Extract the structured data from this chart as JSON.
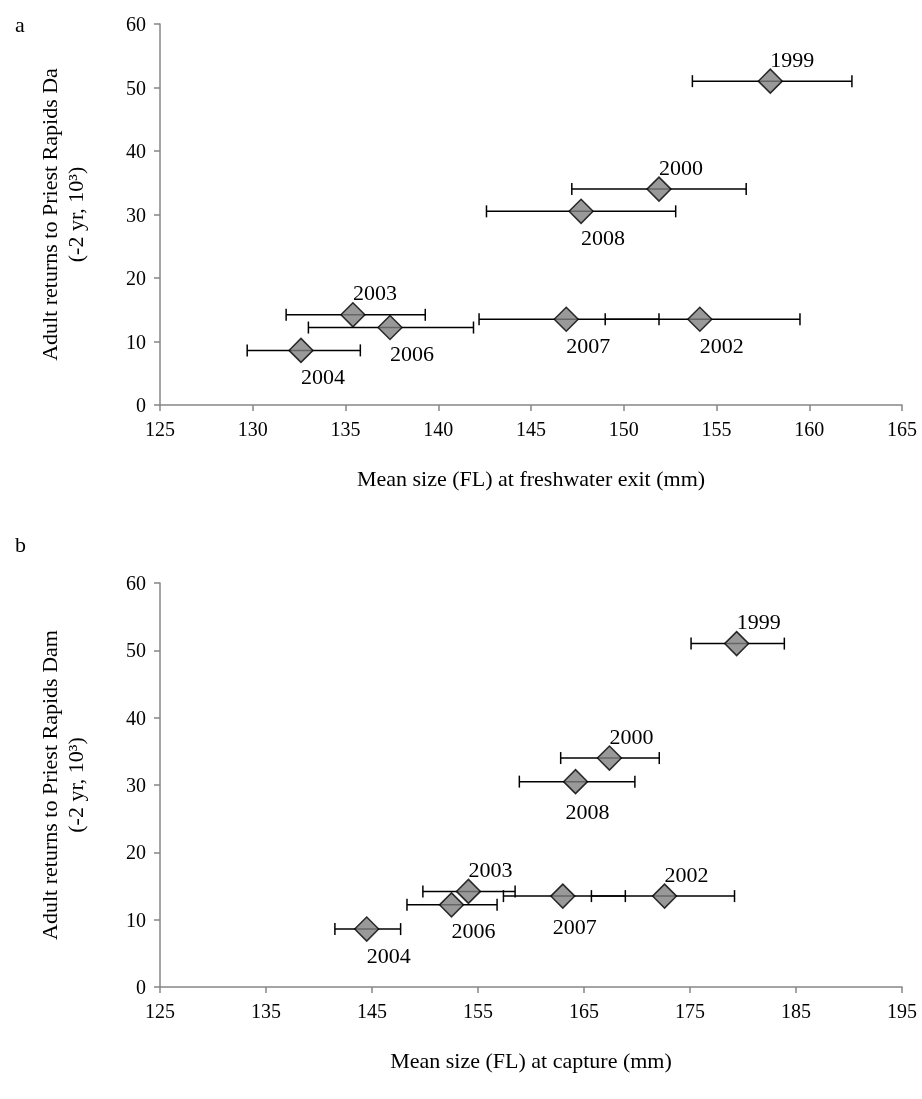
{
  "chart_data": [
    {
      "type": "scatter",
      "title": "a",
      "xlabel": "Mean size (FL) at freshwater exit (mm)",
      "ylabel": "Adult returns to Priest Rapids Da\n(-2 yr, 10³)",
      "x": [
        157.9,
        151.9,
        147.7,
        135.4,
        137.4,
        132.6,
        146.9,
        154.1
      ],
      "values": [
        51.0,
        34.0,
        30.5,
        14.2,
        12.2,
        8.6,
        13.5,
        13.5
      ],
      "xerrors": [
        [
          153.7,
          162.3
        ],
        [
          147.2,
          156.6
        ],
        [
          142.6,
          152.8
        ],
        [
          131.8,
          139.3
        ],
        [
          133.0,
          141.9
        ],
        [
          129.7,
          135.8
        ],
        [
          142.2,
          151.9
        ],
        [
          149.0,
          159.5
        ]
      ],
      "color": "#808080",
      "marker": "diamond",
      "xlim": [
        125,
        165
      ],
      "xticks": [
        125,
        130,
        135,
        140,
        145,
        150,
        155,
        160,
        165
      ],
      "ylim": [
        0,
        60
      ],
      "yticks": [
        0,
        10,
        20,
        30,
        40,
        50,
        60
      ],
      "grid": false,
      "annotations": [
        {
          "text": "1999",
          "x": 157.9,
          "y": 51.0
        },
        {
          "text": "2000",
          "x": 151.9,
          "y": 34.0
        },
        {
          "text": "2008",
          "x": 147.7,
          "y": 30.5
        },
        {
          "text": "2003",
          "x": 135.4,
          "y": 14.2
        },
        {
          "text": "2006",
          "x": 137.4,
          "y": 12.2
        },
        {
          "text": "2004",
          "x": 132.6,
          "y": 8.6
        },
        {
          "text": "2007",
          "x": 146.9,
          "y": 13.5
        },
        {
          "text": "2002",
          "x": 154.1,
          "y": 13.5
        }
      ]
    },
    {
      "type": "scatter",
      "title": "b",
      "xlabel": "Mean size (FL) at capture (mm)",
      "ylabel": "Adult returns to Priest Rapids Dam\n(-2 yr, 10³)",
      "x": [
        179.4,
        167.4,
        164.2,
        154.1,
        152.5,
        144.5,
        163.0,
        172.6
      ],
      "values": [
        51.0,
        34.0,
        30.5,
        14.2,
        12.2,
        8.6,
        13.5,
        13.5
      ],
      "xerrors": [
        [
          175.1,
          183.9
        ],
        [
          162.8,
          172.1
        ],
        [
          158.9,
          169.8
        ],
        [
          149.8,
          158.5
        ],
        [
          148.3,
          156.8
        ],
        [
          141.5,
          147.7
        ],
        [
          157.4,
          168.9
        ],
        [
          165.7,
          179.2
        ]
      ],
      "color": "#808080",
      "marker": "diamond",
      "xlim": [
        125,
        195
      ],
      "xticks": [
        125,
        135,
        145,
        155,
        165,
        175,
        185,
        195
      ],
      "ylim": [
        0,
        60
      ],
      "yticks": [
        0,
        10,
        20,
        30,
        40,
        50,
        60
      ],
      "grid": false,
      "annotations": [
        {
          "text": "1999",
          "x": 179.4,
          "y": 51.0
        },
        {
          "text": "2000",
          "x": 167.4,
          "y": 34.0
        },
        {
          "text": "2008",
          "x": 164.2,
          "y": 30.5
        },
        {
          "text": "2003",
          "x": 154.1,
          "y": 14.2
        },
        {
          "text": "2006",
          "x": 152.5,
          "y": 12.2
        },
        {
          "text": "2004",
          "x": 144.5,
          "y": 8.6
        },
        {
          "text": "2007",
          "x": 163.0,
          "y": 13.5
        },
        {
          "text": "2002",
          "x": 172.6,
          "y": 13.5
        }
      ]
    }
  ]
}
